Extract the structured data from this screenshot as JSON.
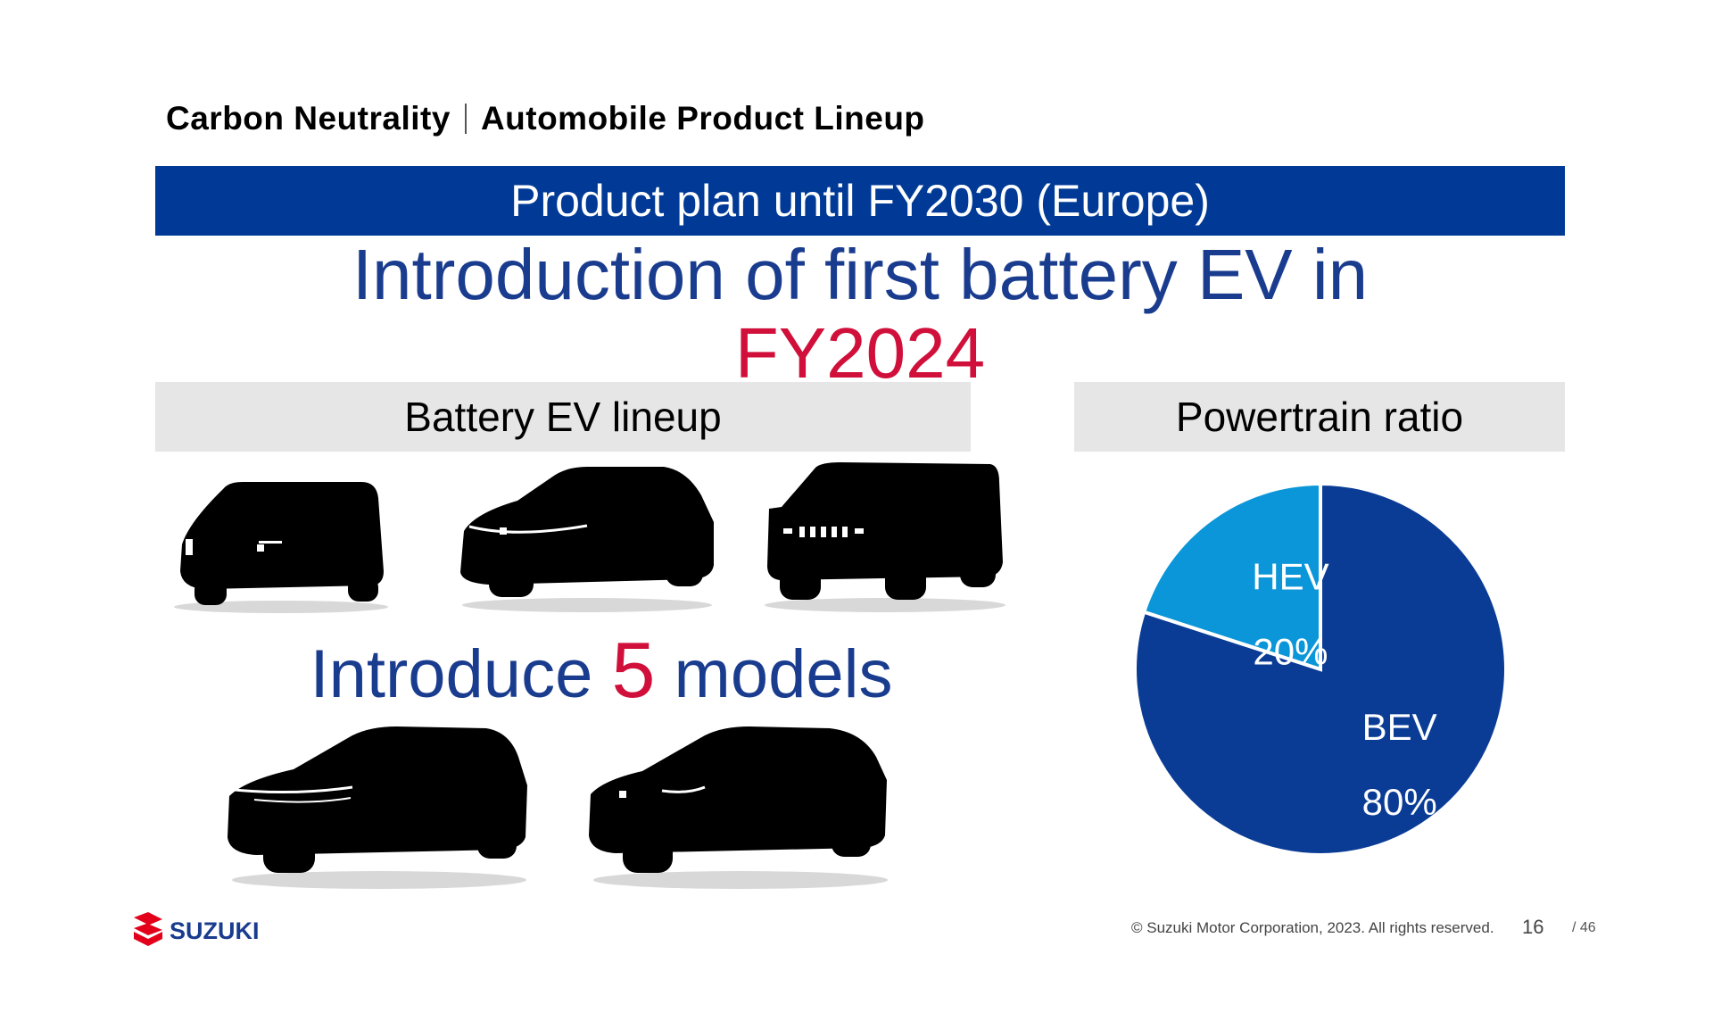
{
  "breadcrumb": {
    "section": "Carbon Neutrality",
    "page": "Automobile Product Lineup"
  },
  "banner": {
    "title": "Product plan until FY2030 (Europe)"
  },
  "headline": {
    "line1": "Introduction of first battery EV in",
    "line2": "FY2024"
  },
  "lineup": {
    "heading": "Battery EV lineup",
    "intro_prefix": "Introduce ",
    "intro_number": "5",
    "intro_suffix": " models",
    "car_icons": [
      "minivan-silhouette-icon",
      "suv-silhouette-icon",
      "jeep-silhouette-icon",
      "crossover-silhouette-icon",
      "compact-suv-silhouette-icon"
    ]
  },
  "ratio": {
    "heading": "Powertrain ratio"
  },
  "chart_data": {
    "type": "pie",
    "categories": [
      "HEV",
      "BEV"
    ],
    "values": [
      20,
      80
    ],
    "labels": [
      "20%",
      "80%"
    ],
    "colors": [
      "#0a96d8",
      "#0a3c96"
    ],
    "start_angle": "12 o'clock, counter-clockwise for HEV"
  },
  "footer": {
    "brand": "SUZUKI",
    "copyright": "© Suzuki Motor Corporation, 2023. All rights reserved.",
    "page": "16",
    "total": "/ 46"
  }
}
